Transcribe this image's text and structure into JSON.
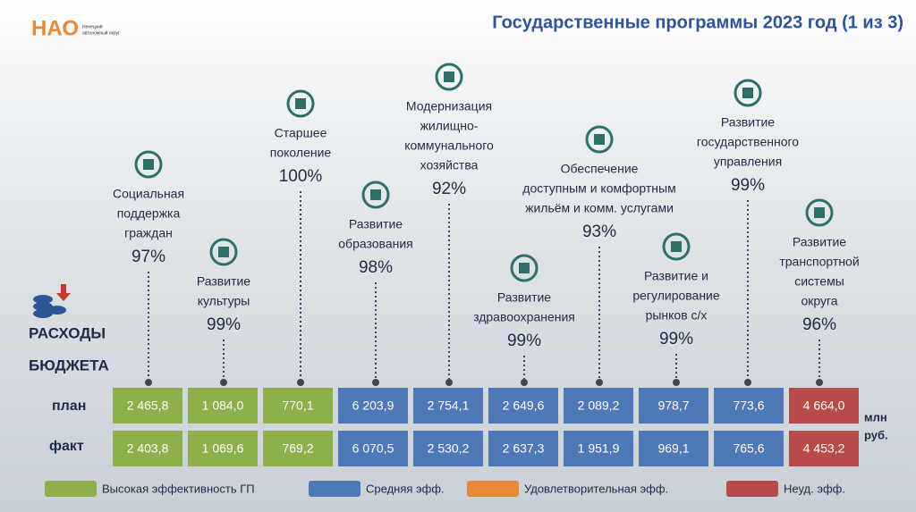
{
  "logo": {
    "mark": "НАО",
    "subtitle": [
      "Ненецкий",
      "автономный округ"
    ]
  },
  "title": "Государственные программы 2023 год (1 из 3)",
  "budget_label": [
    "РАСХОДЫ",
    "БЮДЖЕТА"
  ],
  "row_labels": {
    "plan": "план",
    "fact": "факт"
  },
  "unit": [
    "млн",
    "руб."
  ],
  "programs": [
    {
      "name": [
        "Социальная",
        "поддержка",
        "граждан"
      ],
      "percent": "97%",
      "plan": "2 465,8",
      "fact": "2 403,8",
      "color": "#8db04c"
    },
    {
      "name": [
        "Развитие",
        "культуры"
      ],
      "percent": "99%",
      "plan": "1 084,0",
      "fact": "1 069,6",
      "color": "#8db04c"
    },
    {
      "name": [
        "Старшее",
        "поколение"
      ],
      "percent": "100%",
      "plan": "770,1",
      "fact": "769,2",
      "color": "#8db04c"
    },
    {
      "name": [
        "Развитие",
        "образования"
      ],
      "percent": "98%",
      "plan": "6 203,9",
      "fact": "6 070,5",
      "color": "#4f78b8"
    },
    {
      "name": [
        "Модернизация",
        "жилищно-",
        "коммунального",
        "хозяйства"
      ],
      "percent": "92%",
      "plan": "2 754,1",
      "fact": "2 530,2",
      "color": "#4f78b8"
    },
    {
      "name": [
        "Развитие",
        "здравоохранения"
      ],
      "percent": "99%",
      "plan": "2 649,6",
      "fact": "2 637,3",
      "color": "#4f78b8"
    },
    {
      "name": [
        "Обеспечение",
        "доступным и комфортным",
        "жильём и комм. услугами"
      ],
      "percent": "93%",
      "plan": "2 089,2",
      "fact": "1 951,9",
      "color": "#4f78b8"
    },
    {
      "name": [
        "Развитие и",
        "регулирование",
        "рынков с/х"
      ],
      "percent": "99%",
      "plan": "978,7",
      "fact": "969,1",
      "color": "#4f78b8"
    },
    {
      "name": [
        "Развитие",
        "государственного",
        "управления"
      ],
      "percent": "99%",
      "plan": "773,6",
      "fact": "765,6",
      "color": "#4f78b8"
    },
    {
      "name": [
        "Развитие",
        "транспортной",
        "системы",
        "округа"
      ],
      "percent": "96%",
      "plan": "4 664,0",
      "fact": "4 453,2",
      "color": "#b84a4a"
    }
  ],
  "legend": [
    {
      "label": "Высокая эффективность ГП",
      "color": "#8db04c"
    },
    {
      "label": "Средняя эфф.",
      "color": "#4f78b8"
    },
    {
      "label": "Удовлетворительная эфф.",
      "color": "#e8893a"
    },
    {
      "label": "Неуд. эфф.",
      "color": "#b84a4a"
    }
  ]
}
